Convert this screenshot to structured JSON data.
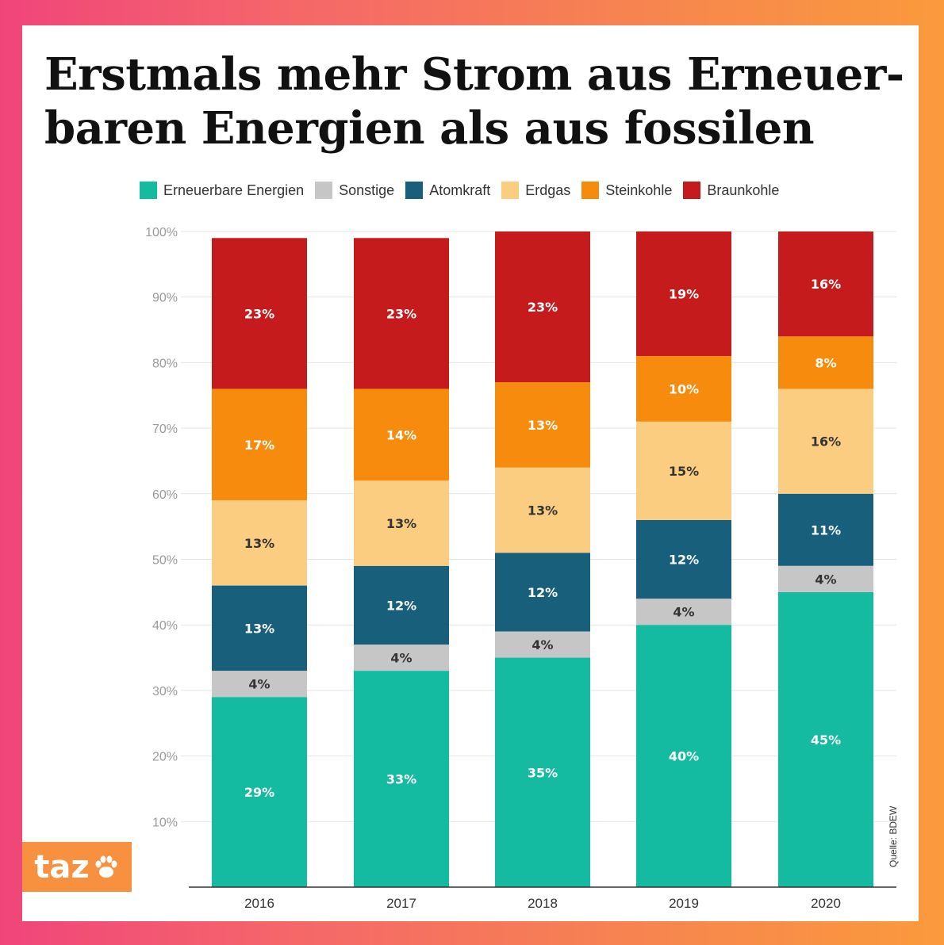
{
  "title_lines": [
    "Erstmals mehr Strom aus Erneuer-",
    "baren Energien als aus fossilen"
  ],
  "source": "Quelle: BDEW",
  "logo": {
    "text": "taz",
    "icon": "paw-icon"
  },
  "colors": {
    "Erneuerbare Energien": "#14bba0",
    "Sonstige": "#c6c6c6",
    "Atomkraft": "#185f7b",
    "Erdgas": "#fbcd80",
    "Steinkohle": "#f68b0d",
    "Braunkohle": "#c51b1c"
  },
  "chart_data": {
    "type": "bar",
    "stacked": true,
    "categories": [
      "2016",
      "2017",
      "2018",
      "2019",
      "2020"
    ],
    "series": [
      {
        "name": "Erneuerbare Energien",
        "values": [
          29,
          33,
          35,
          40,
          45
        ]
      },
      {
        "name": "Sonstige",
        "values": [
          4,
          4,
          4,
          4,
          4
        ]
      },
      {
        "name": "Atomkraft",
        "values": [
          13,
          12,
          12,
          12,
          11
        ]
      },
      {
        "name": "Erdgas",
        "values": [
          13,
          13,
          13,
          15,
          16
        ]
      },
      {
        "name": "Steinkohle",
        "values": [
          17,
          14,
          13,
          10,
          8
        ]
      },
      {
        "name": "Braunkohle",
        "values": [
          23,
          23,
          23,
          19,
          16
        ]
      }
    ],
    "value_labels": [
      [
        "29%",
        "33%",
        "35%",
        "40%",
        "45%"
      ],
      [
        "4%",
        "4%",
        "4%",
        "4%",
        "4%"
      ],
      [
        "13%",
        "12%",
        "12%",
        "12%",
        "11%"
      ],
      [
        "13%",
        "13%",
        "13%",
        "15%",
        "16%"
      ],
      [
        "17%",
        "14%",
        "13%",
        "10%",
        "8%"
      ],
      [
        "23%",
        "23%",
        "23%",
        "19%",
        "16%"
      ]
    ],
    "ylim": [
      0,
      100
    ],
    "yticks": [
      "10%",
      "20%",
      "30%",
      "40%",
      "50%",
      "60%",
      "70%",
      "80%",
      "90%",
      "100%"
    ],
    "ytick_values": [
      10,
      20,
      30,
      40,
      50,
      60,
      70,
      80,
      90,
      100
    ],
    "grid": true,
    "legend_position": "top"
  }
}
